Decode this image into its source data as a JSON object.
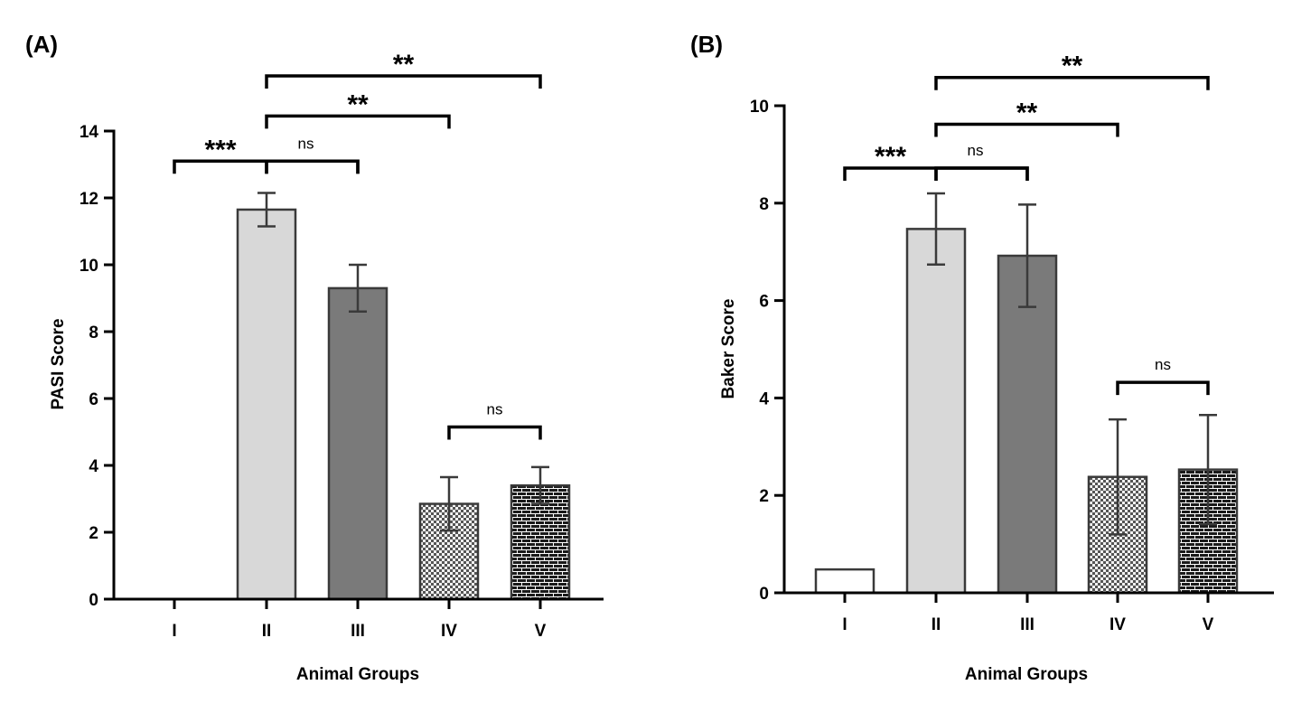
{
  "chart_data": [
    {
      "type": "bar",
      "panel_label": "(A)",
      "xlabel": "Animal Groups",
      "ylabel": "PASI Score",
      "ylim": [
        0,
        14
      ],
      "yticks": [
        0,
        2,
        4,
        6,
        8,
        10,
        12,
        14
      ],
      "categories": [
        "I",
        "II",
        "III",
        "IV",
        "V"
      ],
      "values": [
        0,
        11.65,
        9.3,
        2.85,
        3.4
      ],
      "errors": [
        0,
        0.5,
        0.7,
        0.8,
        0.55
      ],
      "fills": [
        "#ffffff",
        "#d8d8d8",
        "#7a7a7a",
        "checker",
        "brick"
      ],
      "significance": [
        {
          "from": 0,
          "to": 2,
          "label": "***",
          "anchor": 1,
          "y": 13.1
        },
        {
          "from": 1,
          "to": 2,
          "label": "ns",
          "y": 13.1
        },
        {
          "from": 1,
          "to": 3,
          "label": "**",
          "y": 14.45
        },
        {
          "from": 1,
          "to": 4,
          "label": "**",
          "y": 15.65
        },
        {
          "from": 3,
          "to": 4,
          "label": "ns",
          "y": 5.15
        }
      ]
    },
    {
      "type": "bar",
      "panel_label": "(B)",
      "xlabel": "Animal Groups",
      "ylabel": "Baker Score",
      "ylim": [
        0,
        10
      ],
      "yticks": [
        0,
        2,
        4,
        6,
        8,
        10
      ],
      "categories": [
        "I",
        "II",
        "III",
        "IV",
        "V"
      ],
      "values": [
        0.48,
        7.47,
        6.92,
        2.38,
        2.53
      ],
      "errors": [
        0,
        0.73,
        1.05,
        1.18,
        1.12
      ],
      "fills": [
        "#ffffff",
        "#d8d8d8",
        "#7a7a7a",
        "checker",
        "brick"
      ],
      "significance": [
        {
          "from": 0,
          "to": 2,
          "label": "***",
          "anchor": 1,
          "y": 8.72
        },
        {
          "from": 1,
          "to": 2,
          "label": "ns",
          "y": 8.72
        },
        {
          "from": 1,
          "to": 3,
          "label": "**",
          "y": 9.62
        },
        {
          "from": 1,
          "to": 4,
          "label": "**",
          "y": 10.58
        },
        {
          "from": 3,
          "to": 4,
          "label": "ns",
          "y": 4.32
        }
      ]
    }
  ]
}
